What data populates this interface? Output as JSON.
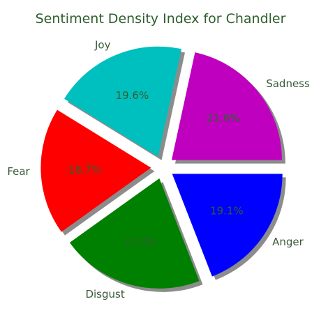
{
  "chart_data": {
    "type": "pie",
    "title": "Sentiment Density Index for Chandler",
    "slices": [
      {
        "label": "Sadness",
        "value": 21.6,
        "pct_label": "21.6%",
        "color": "#bf00bf"
      },
      {
        "label": "Joy",
        "value": 19.6,
        "pct_label": "19.6%",
        "color": "#00bfbf"
      },
      {
        "label": "Fear",
        "value": 18.7,
        "pct_label": "18.7%",
        "color": "#ff0000"
      },
      {
        "label": "Disgust",
        "value": 21.0,
        "pct_label": "21.0%",
        "color": "#008000"
      },
      {
        "label": "Anger",
        "value": 19.1,
        "pct_label": "19.1%",
        "color": "#0000ff"
      }
    ],
    "start_angle_deg": 0,
    "direction": "counterclockwise",
    "exploded": true,
    "shadow": true,
    "text_color": "#2e5e2e",
    "label_color": "#3a5a3a"
  }
}
